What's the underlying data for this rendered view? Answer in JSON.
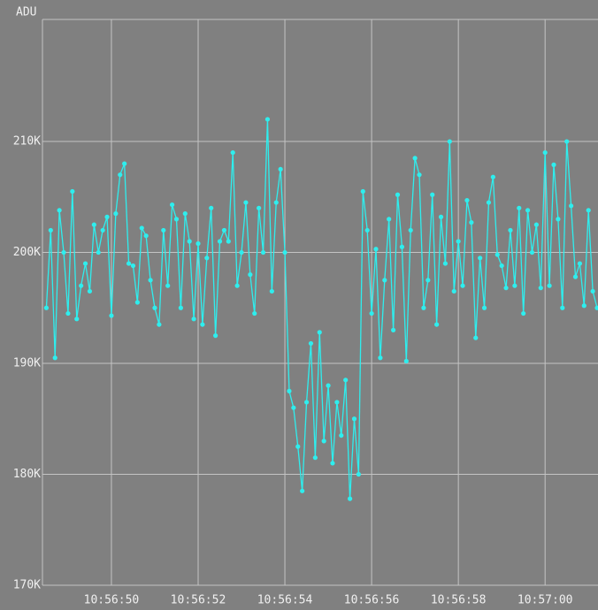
{
  "chart_data": {
    "type": "line",
    "y_label": "ADU",
    "color": "#2eeeee",
    "grid": true,
    "x": [
      48.5,
      48.6,
      48.7,
      48.8,
      48.9,
      49.0,
      49.1,
      49.2,
      49.3,
      49.4,
      49.5,
      49.6,
      49.7,
      49.8,
      49.9,
      50.0,
      50.1,
      50.2,
      50.3,
      50.4,
      50.5,
      50.6,
      50.7,
      50.8,
      50.9,
      51.0,
      51.1,
      51.2,
      51.3,
      51.4,
      51.5,
      51.6,
      51.7,
      51.8,
      51.9,
      52.0,
      52.1,
      52.2,
      52.3,
      52.4,
      52.5,
      52.6,
      52.7,
      52.8,
      52.9,
      53.0,
      53.1,
      53.2,
      53.3,
      53.4,
      53.5,
      53.6,
      53.7,
      53.8,
      53.9,
      54.0,
      54.1,
      54.2,
      54.3,
      54.4,
      54.5,
      54.6,
      54.7,
      54.8,
      54.9,
      55.0,
      55.1,
      55.2,
      55.3,
      55.4,
      55.5,
      55.6,
      55.7,
      55.8,
      55.9,
      56.0,
      56.1,
      56.2,
      56.3,
      56.4,
      56.5,
      56.6,
      56.7,
      56.8,
      56.9,
      57.0,
      57.1,
      57.2,
      57.3,
      57.4,
      57.5,
      57.6,
      57.7,
      57.8,
      57.9,
      58.0,
      58.1,
      58.2,
      58.3,
      58.4,
      58.5,
      58.6,
      58.7,
      58.8,
      58.9,
      59.0,
      59.1,
      59.2,
      59.3,
      59.4,
      59.5,
      59.6,
      59.7,
      59.8,
      59.9,
      60.0,
      60.1,
      60.2,
      60.3,
      60.4,
      60.5,
      60.6,
      60.7,
      60.8,
      60.9,
      61.0,
      61.1,
      61.2
    ],
    "values": [
      195000,
      202000,
      190500,
      203800,
      200000,
      194500,
      205500,
      194000,
      197000,
      199000,
      196500,
      202500,
      200000,
      202000,
      203200,
      194300,
      203500,
      207000,
      208000,
      199000,
      198800,
      195500,
      202200,
      201500,
      197500,
      195000,
      193500,
      202000,
      197000,
      204300,
      203000,
      195000,
      203500,
      201000,
      194000,
      200800,
      193500,
      199500,
      204000,
      192500,
      201000,
      202000,
      201000,
      209000,
      197000,
      200000,
      204500,
      198000,
      194500,
      204000,
      200000,
      212000,
      196500,
      204500,
      207500,
      200000,
      187500,
      186000,
      182500,
      178500,
      186500,
      191800,
      181500,
      192800,
      183000,
      188000,
      181000,
      186500,
      183500,
      188500,
      177800,
      185000,
      180000,
      205500,
      202000,
      194500,
      200300,
      190500,
      197500,
      203000,
      193000,
      205200,
      200500,
      190200,
      202000,
      208500,
      207000,
      195000,
      197500,
      205200,
      193500,
      203200,
      199000,
      210000,
      196500,
      201000,
      197000,
      204700,
      202700,
      192300,
      199500,
      195000,
      204500,
      206800,
      199800,
      198800,
      196800,
      202000,
      197000,
      204000,
      194500,
      203800,
      200000,
      202500,
      196800,
      209000,
      197000,
      207900,
      203000,
      195000,
      210000,
      204200,
      197800,
      199000,
      195200,
      203800,
      196500,
      195000
    ],
    "xlim": [
      48.41,
      61.22
    ],
    "xticks": [
      {
        "value": 50,
        "label": "10:56:50"
      },
      {
        "value": 52,
        "label": "10:56:52"
      },
      {
        "value": 54,
        "label": "10:56:54"
      },
      {
        "value": 56,
        "label": "10:56:56"
      },
      {
        "value": 58,
        "label": "10:56:58"
      },
      {
        "value": 60,
        "label": "10:57:00"
      }
    ],
    "ylim": [
      170000,
      221000
    ],
    "yticks": [
      {
        "value": 170000,
        "label": "170K"
      },
      {
        "value": 180000,
        "label": "180K"
      },
      {
        "value": 190000,
        "label": "190K"
      },
      {
        "value": 200000,
        "label": "200K"
      },
      {
        "value": 210000,
        "label": "210K"
      }
    ]
  }
}
